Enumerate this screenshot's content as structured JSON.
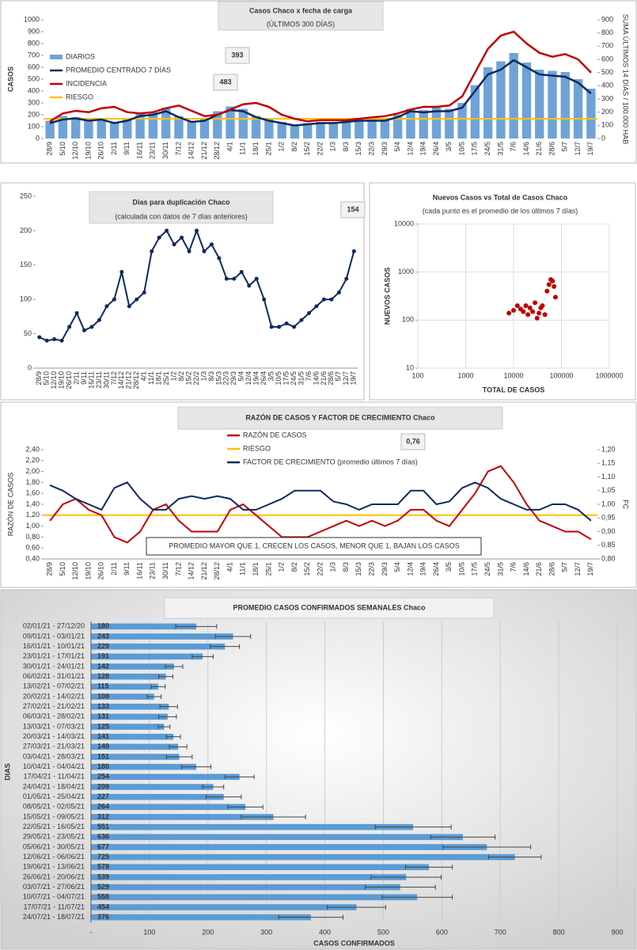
{
  "chart_data": [
    {
      "type": "combo",
      "title": "Casos Chaco x fecha de carga",
      "subtitle": "(ÚLTIMOS 300 DÍAS)",
      "y_label": "CASOS",
      "y2_label": "SUMA ÚLTIMOS 14 DÍAS / 100.000 HAB",
      "annotations": [
        "393",
        "483"
      ],
      "legend": "upper left",
      "grid": false,
      "categories": [
        "28/9",
        "5/10",
        "12/10",
        "19/10",
        "26/10",
        "2/11",
        "9/11",
        "16/11",
        "23/11",
        "30/11",
        "7/12",
        "14/12",
        "21/12",
        "28/12",
        "4/1",
        "11/1",
        "18/1",
        "25/1",
        "1/2",
        "8/2",
        "15/2",
        "22/2",
        "1/3",
        "8/3",
        "15/3",
        "22/3",
        "29/3",
        "5/4",
        "12/4",
        "19/4",
        "26/4",
        "3/5",
        "10/5",
        "17/5",
        "24/5",
        "31/5",
        "7/6",
        "14/6",
        "21/6",
        "28/6",
        "5/7",
        "12/7",
        "19/7"
      ],
      "series": [
        {
          "name": "DIARIOS",
          "kind": "bar",
          "color": "#6fa3d8",
          "values": [
            150,
            190,
            180,
            160,
            170,
            140,
            170,
            210,
            220,
            260,
            190,
            150,
            170,
            230,
            270,
            250,
            190,
            160,
            140,
            120,
            130,
            140,
            140,
            160,
            160,
            170,
            160,
            200,
            250,
            240,
            260,
            250,
            300,
            450,
            600,
            650,
            720,
            640,
            580,
            570,
            560,
            500,
            420
          ]
        },
        {
          "name": "PROMEDIO CENTRADO 7 DÍAS",
          "kind": "line",
          "color": "#0d2a5e",
          "values": [
            130,
            160,
            170,
            150,
            160,
            130,
            150,
            190,
            200,
            230,
            180,
            140,
            150,
            200,
            240,
            230,
            180,
            150,
            130,
            110,
            120,
            130,
            130,
            140,
            150,
            150,
            150,
            180,
            230,
            220,
            230,
            230,
            260,
            400,
            540,
            580,
            660,
            600,
            540,
            530,
            520,
            470,
            380
          ]
        },
        {
          "name": "INCIDENCIA",
          "kind": "line",
          "axis": "y2",
          "color": "#c00000",
          "values": [
            130,
            190,
            210,
            200,
            230,
            240,
            200,
            190,
            200,
            230,
            250,
            210,
            170,
            180,
            220,
            260,
            270,
            240,
            180,
            150,
            130,
            140,
            140,
            140,
            150,
            160,
            170,
            190,
            220,
            240,
            240,
            250,
            320,
            500,
            680,
            780,
            810,
            720,
            650,
            620,
            640,
            600,
            500
          ]
        }
      ],
      "reference": {
        "name": "RIESGO",
        "color": "#ffc000",
        "axis": "y2",
        "value": 150
      },
      "ylim": [
        0,
        1000
      ],
      "yticks": [
        0,
        100,
        200,
        300,
        400,
        500,
        600,
        700,
        800,
        900,
        1000
      ],
      "y2lim": [
        0,
        900
      ],
      "y2ticks": [
        0,
        100,
        200,
        300,
        400,
        500,
        600,
        700,
        800,
        900
      ]
    },
    {
      "type": "line",
      "title": "Dias para duplicación Chaco",
      "subtitle": "(calculada con datos de 7 días anteriores)",
      "annotations": [
        "154"
      ],
      "grid": false,
      "color": "#0d2a5e",
      "markers": true,
      "categories": [
        "28/9",
        "5/10",
        "12/10",
        "19/10",
        "26/10",
        "2/11",
        "9/11",
        "16/11",
        "23/11",
        "30/11",
        "7/12",
        "14/12",
        "21/12",
        "28/12",
        "4/1",
        "11/1",
        "18/1",
        "25/1",
        "1/2",
        "8/2",
        "15/2",
        "22/2",
        "1/3",
        "8/3",
        "15/3",
        "22/3",
        "29/3",
        "5/4",
        "12/4",
        "19/4",
        "26/4",
        "3/5",
        "10/5",
        "17/5",
        "24/5",
        "31/5",
        "7/6",
        "14/6",
        "21/6",
        "28/6",
        "5/7",
        "12/7",
        "19/7"
      ],
      "values": [
        45,
        40,
        42,
        40,
        60,
        80,
        55,
        60,
        70,
        90,
        100,
        140,
        90,
        100,
        110,
        170,
        190,
        200,
        180,
        190,
        170,
        200,
        170,
        180,
        160,
        130,
        130,
        140,
        120,
        130,
        100,
        60,
        60,
        65,
        60,
        70,
        80,
        90,
        100,
        100,
        110,
        130,
        170
      ],
      "ylim": [
        0,
        250
      ],
      "yticks": [
        0,
        50,
        100,
        150,
        200,
        250
      ]
    },
    {
      "type": "scatter",
      "title": "Nuevos Casos vs Total de Casos Chaco",
      "subtitle": "(cada punto es el promedio de los últimos 7 días)",
      "x_label": "TOTAL DE CASOS",
      "y_label": "NUEVOS CASOS",
      "grid": true,
      "xscale": "log",
      "yscale": "log",
      "color": "#c00000",
      "x": [
        8000,
        10000,
        12000,
        14000,
        16000,
        18000,
        20000,
        22000,
        25000,
        28000,
        31000,
        34000,
        37000,
        40000,
        45000,
        50000,
        55000,
        60000,
        65000,
        70000,
        75000
      ],
      "values": [
        140,
        160,
        200,
        170,
        150,
        200,
        130,
        180,
        150,
        230,
        110,
        140,
        180,
        200,
        130,
        400,
        550,
        700,
        650,
        500,
        300
      ],
      "xlim": [
        100,
        1000000
      ],
      "xticks": [
        100,
        1000,
        10000,
        100000,
        1000000
      ],
      "ylim": [
        10,
        10000
      ],
      "yticks": [
        10,
        100,
        1000,
        10000
      ]
    },
    {
      "type": "line",
      "title": "RAZÓN DE CASOS Y FACTOR DE CRECIMIENTO Chaco",
      "y_label": "RAZÓN DE CASOS",
      "y2_label": "FC",
      "annotations": [
        "0,76"
      ],
      "note": "PROMEDIO MAYOR QUE 1, CRECEN LOS CASOS, MENOR QUE 1, BAJAN LOS CASOS",
      "legend": "upper center",
      "grid": false,
      "categories": [
        "28/9",
        "5/10",
        "12/10",
        "19/10",
        "26/10",
        "2/11",
        "9/11",
        "16/11",
        "23/11",
        "30/11",
        "7/12",
        "14/12",
        "21/12",
        "28/12",
        "4/1",
        "11/1",
        "18/1",
        "25/1",
        "1/2",
        "8/2",
        "15/2",
        "22/2",
        "1/3",
        "8/3",
        "15/3",
        "22/3",
        "29/3",
        "5/4",
        "12/4",
        "19/4",
        "26/4",
        "3/5",
        "10/5",
        "17/5",
        "24/5",
        "31/5",
        "7/6",
        "14/6",
        "21/6",
        "28/6",
        "5/7",
        "12/7",
        "19/7"
      ],
      "series": [
        {
          "name": "RAZÓN DE CASOS",
          "color": "#c00000",
          "values": [
            1.1,
            1.4,
            1.5,
            1.3,
            1.2,
            0.8,
            0.7,
            0.9,
            1.3,
            1.4,
            1.1,
            0.9,
            0.9,
            0.9,
            1.3,
            1.4,
            1.2,
            1.0,
            0.8,
            0.8,
            0.8,
            0.9,
            1.0,
            1.1,
            1.0,
            1.1,
            1.0,
            1.1,
            1.3,
            1.3,
            1.1,
            1.0,
            1.3,
            1.6,
            2.0,
            2.1,
            1.8,
            1.4,
            1.1,
            1.0,
            0.9,
            0.9,
            0.76
          ]
        },
        {
          "name": "FACTOR DE CRECIMIENTO (promedio últimos 7 días)",
          "axis": "y2",
          "color": "#0d2a5e",
          "values": [
            1.07,
            1.05,
            1.02,
            1.0,
            0.98,
            1.06,
            1.08,
            1.02,
            0.98,
            0.98,
            1.02,
            1.03,
            1.02,
            1.03,
            1.02,
            0.98,
            0.98,
            1.0,
            1.02,
            1.05,
            1.05,
            1.05,
            1.01,
            1.0,
            0.98,
            1.0,
            1.0,
            1.0,
            1.05,
            1.05,
            1.0,
            1.01,
            1.06,
            1.08,
            1.06,
            1.02,
            1.0,
            0.98,
            0.98,
            1.0,
            1.0,
            0.98,
            0.94
          ]
        }
      ],
      "reference": {
        "name": "RIESGO",
        "color": "#ffc000",
        "value": 1.2
      },
      "ylim": [
        0.4,
        2.4
      ],
      "yticks": [
        {
          "value": 0.4,
          "label": "0,40"
        },
        {
          "value": 0.6,
          "label": "0,60"
        },
        {
          "value": 0.8,
          "label": "0,80"
        },
        {
          "value": 1.0,
          "label": "1,00"
        },
        {
          "value": 1.2,
          "label": "1,20"
        },
        {
          "value": 1.4,
          "label": "1,40"
        },
        {
          "value": 1.6,
          "label": "1,60"
        },
        {
          "value": 1.8,
          "label": "1,80"
        },
        {
          "value": 2.0,
          "label": "2,00"
        },
        {
          "value": 2.2,
          "label": "2,20"
        },
        {
          "value": 2.4,
          "label": "2,40"
        }
      ],
      "y2lim": [
        0.8,
        1.2
      ],
      "y2ticks": [
        {
          "value": 0.8,
          "label": "0,80"
        },
        {
          "value": 0.85,
          "label": "0,85"
        },
        {
          "value": 0.9,
          "label": "0,90"
        },
        {
          "value": 0.95,
          "label": "0,95"
        },
        {
          "value": 1.0,
          "label": "1,00"
        },
        {
          "value": 1.05,
          "label": "1,05"
        },
        {
          "value": 1.1,
          "label": "1,10"
        },
        {
          "value": 1.15,
          "label": "1,15"
        },
        {
          "value": 1.2,
          "label": "1,20"
        }
      ]
    },
    {
      "type": "bar",
      "horizontal": true,
      "title": "PROMEDIO CASOS CONFIRMADOS SEMANALES Chaco",
      "x_label": "CASOS CONFIRMADOS",
      "y_label": "DIAS",
      "grid": true,
      "color": "#5b9bd5",
      "categories": [
        "02/01/21 - 27/12/20",
        "09/01/21 - 03/01/21",
        "16/01/21 - 10/01/21",
        "23/01/21 - 17/01/21",
        "30/01/21 - 24/01/21",
        "06/02/21 - 31/01/21",
        "13/02/21 - 07/02/21",
        "20/02/21 - 14/02/21",
        "27/02/21 - 21/02/21",
        "06/03/21 - 28/02/21",
        "13/03/21 - 07/03/21",
        "20/03/21 - 14/03/21",
        "27/03/21 - 21/03/21",
        "03/04/21 - 28/03/21",
        "10/04/21 - 04/04/21",
        "17/04/21 - 11/04/21",
        "24/04/21 - 18/04/21",
        "01/05/21 - 25/04/21",
        "08/05/21 - 02/05/21",
        "15/05/21 - 09/05/21",
        "22/05/21 - 16/05/21",
        "29/05/21 - 23/05/21",
        "05/06/21 - 30/05/21",
        "12/06/21 - 06/06/21",
        "19/06/21 - 13/06/21",
        "26/06/21 - 20/06/21",
        "03/07/21 - 27/06/21",
        "10/07/21 - 04/07/21",
        "17/07/21 - 11/07/21",
        "24/07/21 - 18/07/21"
      ],
      "values": [
        180,
        243,
        229,
        191,
        142,
        128,
        115,
        108,
        133,
        131,
        125,
        141,
        149,
        151,
        180,
        254,
        209,
        227,
        264,
        312,
        551,
        636,
        677,
        725,
        578,
        539,
        529,
        558,
        454,
        376
      ],
      "errors": [
        35,
        30,
        25,
        18,
        15,
        12,
        12,
        12,
        15,
        15,
        10,
        12,
        15,
        22,
        25,
        25,
        18,
        30,
        30,
        55,
        65,
        55,
        75,
        45,
        40,
        60,
        60,
        60,
        50,
        55
      ],
      "xlim": [
        0,
        900
      ],
      "xticks": [
        {
          "value": 0,
          "label": "-"
        },
        100,
        200,
        300,
        400,
        500,
        600,
        700,
        800,
        900
      ]
    }
  ]
}
